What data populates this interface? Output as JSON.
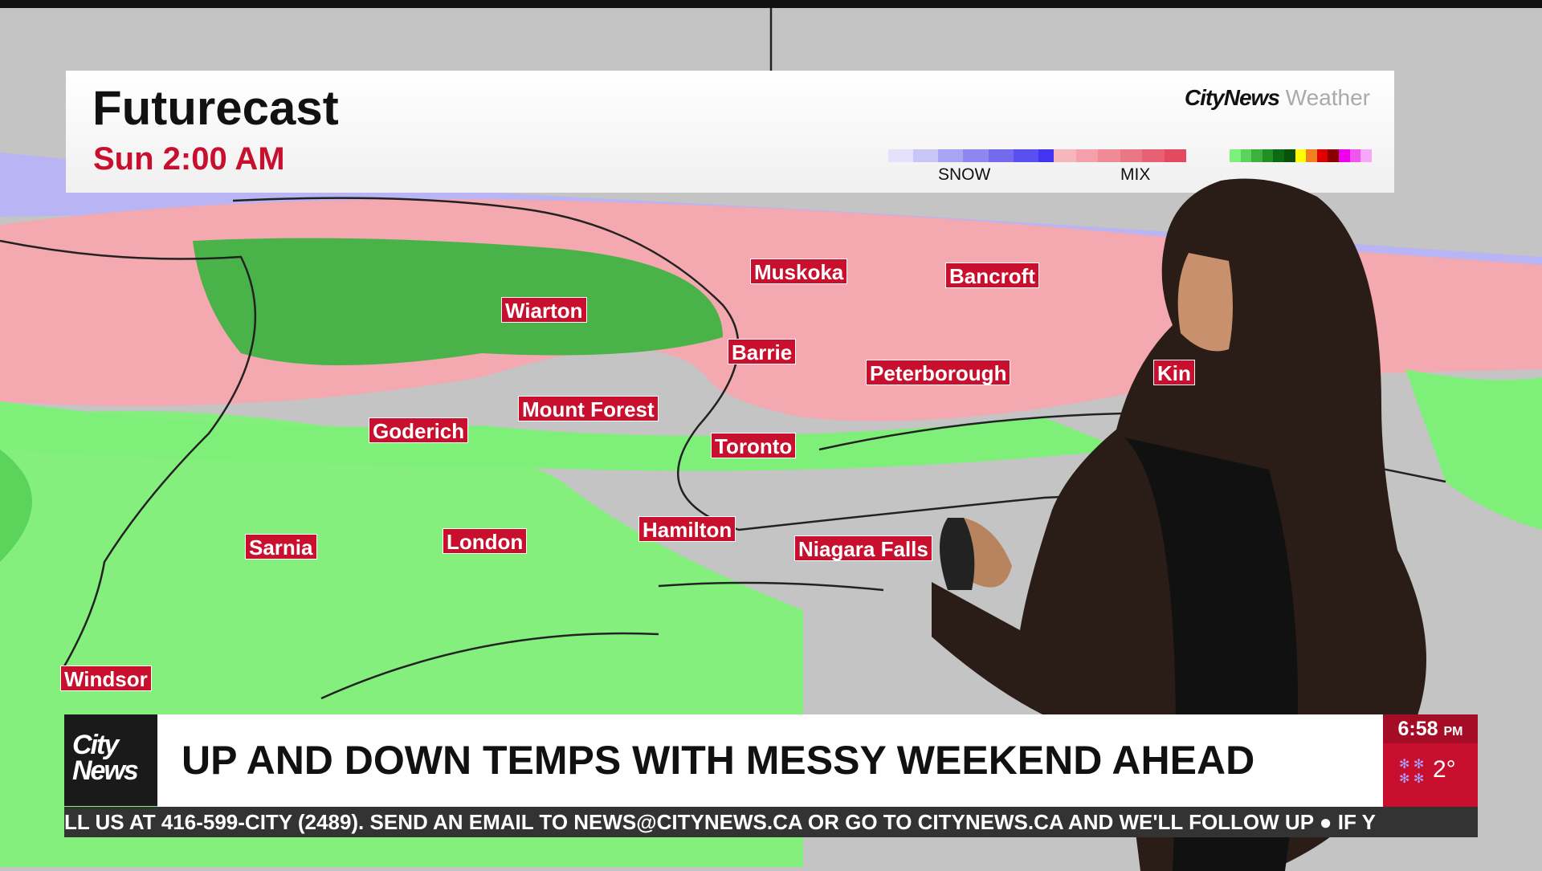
{
  "header": {
    "title": "Futurecast",
    "time": "Sun 2:00 AM",
    "brand_bold": "CityNews",
    "brand_light": "Weather"
  },
  "legend": {
    "labels": [
      "SNOW",
      "MIX"
    ],
    "snow_colors": [
      "#e4e2fa",
      "#c9c6f5",
      "#a9a4f2",
      "#8e87ef",
      "#736aee",
      "#5a4ff0",
      "#4434f2"
    ],
    "mix_colors": [
      "#f7b6bd",
      "#f3a0aa",
      "#ef8b97",
      "#eb7685",
      "#e76073",
      "#e34a60"
    ],
    "rain_colors": [
      "#7ef07a",
      "#5ad45a",
      "#3db13d",
      "#238f23",
      "#0b6b13",
      "#0a4f0c",
      "#ffff00",
      "#f08020",
      "#e00000",
      "#8a0000",
      "#ee00ee",
      "#f055f0",
      "#f7a7f7"
    ]
  },
  "cities": [
    "Muskoka",
    "Bancroft",
    "Wiarton",
    "Barrie",
    "Peterborough",
    "Kin",
    "Mount Forest",
    "Goderich",
    "Toronto",
    "Hamilton",
    "Niagara Falls",
    "Sarnia",
    "London",
    "Windsor"
  ],
  "lower_third": {
    "logo": "City News",
    "headline": "UP AND DOWN TEMPS WITH MESSY WEEKEND AHEAD",
    "ticker": "LL US AT 416-599-CITY (2489).  SEND AN EMAIL TO NEWS@CITYNEWS.CA OR GO TO CITYNEWS.CA AND WE'LL FOLLOW UP   ●   IF Y"
  },
  "clock": {
    "time": "6:58",
    "ampm": "PM",
    "temperature": "2°",
    "condition_icon": "snow-icon"
  }
}
